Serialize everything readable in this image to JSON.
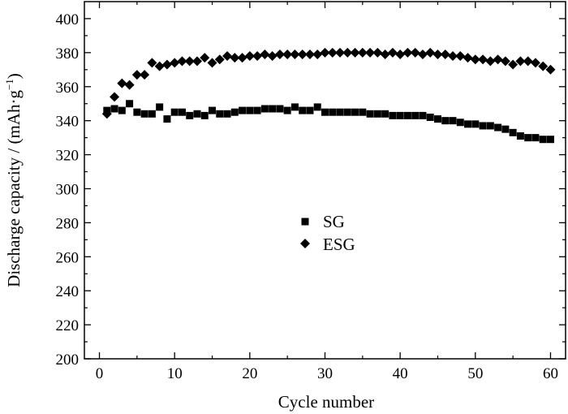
{
  "chart_data": {
    "type": "scatter",
    "xlabel": "Cycle number",
    "ylabel_main": "Discharge  capacity / (mAh·g",
    "ylabel_sup": "−1",
    "ylabel_close": ")",
    "xlim": [
      -2,
      62
    ],
    "ylim": [
      200,
      410
    ],
    "xticks": [
      0,
      10,
      20,
      30,
      40,
      50,
      60
    ],
    "yticks": [
      200,
      220,
      240,
      260,
      280,
      300,
      320,
      340,
      360,
      380,
      400
    ],
    "legend_position": "center",
    "grid": false,
    "series": [
      {
        "name": "SG",
        "marker": "square",
        "color": "#000000",
        "x": [
          1,
          2,
          3,
          4,
          5,
          6,
          7,
          8,
          9,
          10,
          11,
          12,
          13,
          14,
          15,
          16,
          17,
          18,
          19,
          20,
          21,
          22,
          23,
          24,
          25,
          26,
          27,
          28,
          29,
          30,
          31,
          32,
          33,
          34,
          35,
          36,
          37,
          38,
          39,
          40,
          41,
          42,
          43,
          44,
          45,
          46,
          47,
          48,
          49,
          50,
          51,
          52,
          53,
          54,
          55,
          56,
          57,
          58,
          59,
          60
        ],
        "y": [
          346,
          347,
          346,
          350,
          345,
          344,
          344,
          348,
          341,
          345,
          345,
          343,
          344,
          343,
          346,
          344,
          344,
          345,
          346,
          346,
          346,
          347,
          347,
          347,
          346,
          348,
          346,
          346,
          348,
          345,
          345,
          345,
          345,
          345,
          345,
          344,
          344,
          344,
          343,
          343,
          343,
          343,
          343,
          342,
          341,
          340,
          340,
          339,
          338,
          338,
          337,
          337,
          336,
          335,
          333,
          331,
          330,
          330,
          329,
          329
        ]
      },
      {
        "name": "ESG",
        "marker": "diamond",
        "color": "#000000",
        "x": [
          1,
          2,
          3,
          4,
          5,
          6,
          7,
          8,
          9,
          10,
          11,
          12,
          13,
          14,
          15,
          16,
          17,
          18,
          19,
          20,
          21,
          22,
          23,
          24,
          25,
          26,
          27,
          28,
          29,
          30,
          31,
          32,
          33,
          34,
          35,
          36,
          37,
          38,
          39,
          40,
          41,
          42,
          43,
          44,
          45,
          46,
          47,
          48,
          49,
          50,
          51,
          52,
          53,
          54,
          55,
          56,
          57,
          58,
          59,
          60
        ],
        "y": [
          344,
          354,
          362,
          361,
          367,
          367,
          374,
          372,
          373,
          374,
          375,
          375,
          375,
          377,
          374,
          376,
          378,
          377,
          377,
          378,
          378,
          379,
          378,
          379,
          379,
          379,
          379,
          379,
          379,
          380,
          380,
          380,
          380,
          380,
          380,
          380,
          380,
          379,
          380,
          379,
          380,
          380,
          379,
          380,
          379,
          379,
          378,
          378,
          377,
          376,
          376,
          375,
          376,
          375,
          373,
          375,
          375,
          374,
          372,
          370
        ]
      }
    ]
  }
}
